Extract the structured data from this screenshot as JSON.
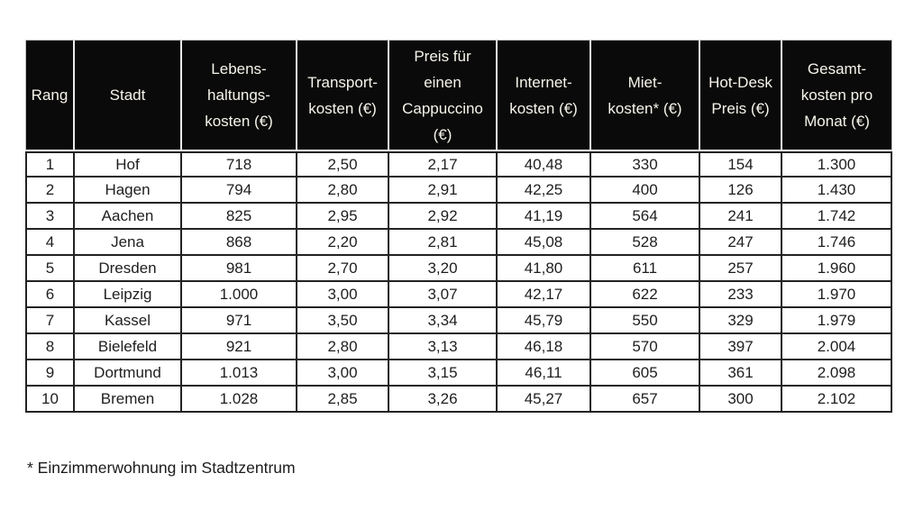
{
  "chart_data": {
    "type": "table",
    "title": "",
    "columns": [
      {
        "id": "rang",
        "label": [
          "Rang"
        ]
      },
      {
        "id": "stadt",
        "label": [
          "Stadt"
        ]
      },
      {
        "id": "lebenshaltungskosten",
        "label": [
          "Lebens-",
          "haltungs-",
          "kosten (€)"
        ]
      },
      {
        "id": "transportkosten",
        "label": [
          "Transport-",
          "kosten (€)"
        ]
      },
      {
        "id": "cappuccino-preis",
        "label": [
          "Preis für",
          "einen",
          "Cappuccino",
          "(€)"
        ]
      },
      {
        "id": "internetkosten",
        "label": [
          "Internet-",
          "kosten (€)"
        ]
      },
      {
        "id": "mietkosten",
        "label": [
          "Miet-",
          "kosten* (€)"
        ]
      },
      {
        "id": "hotdesk-preis",
        "label": [
          "Hot-Desk",
          "Preis (€)"
        ]
      },
      {
        "id": "gesamtkosten",
        "label": [
          "Gesamt-",
          "kosten pro",
          "Monat (€)"
        ]
      }
    ],
    "rows": [
      [
        "1",
        "Hof",
        "718",
        "2,50",
        "2,17",
        "40,48",
        "330",
        "154",
        "1.300"
      ],
      [
        "2",
        "Hagen",
        "794",
        "2,80",
        "2,91",
        "42,25",
        "400",
        "126",
        "1.430"
      ],
      [
        "3",
        "Aachen",
        "825",
        "2,95",
        "2,92",
        "41,19",
        "564",
        "241",
        "1.742"
      ],
      [
        "4",
        "Jena",
        "868",
        "2,20",
        "2,81",
        "45,08",
        "528",
        "247",
        "1.746"
      ],
      [
        "5",
        "Dresden",
        "981",
        "2,70",
        "3,20",
        "41,80",
        "611",
        "257",
        "1.960"
      ],
      [
        "6",
        "Leipzig",
        "1.000",
        "3,00",
        "3,07",
        "42,17",
        "622",
        "233",
        "1.970"
      ],
      [
        "7",
        "Kassel",
        "971",
        "3,50",
        "3,34",
        "45,79",
        "550",
        "329",
        "1.979"
      ],
      [
        "8",
        "Bielefeld",
        "921",
        "2,80",
        "3,13",
        "46,18",
        "570",
        "397",
        "2.004"
      ],
      [
        "9",
        "Dortmund",
        "1.013",
        "3,00",
        "3,15",
        "46,11",
        "605",
        "361",
        "2.098"
      ],
      [
        "10",
        "Bremen",
        "1.028",
        "2,85",
        "3,26",
        "45,27",
        "657",
        "300",
        "2.102"
      ]
    ],
    "footnote": "* Einzimmerwohnung im Stadtzentrum",
    "colors": {
      "header_bg": "#0a0a0a",
      "header_text": "#f7f4ea",
      "body_text": "#1e1e1e",
      "grid": "#222222",
      "background": "#ffffff"
    }
  }
}
